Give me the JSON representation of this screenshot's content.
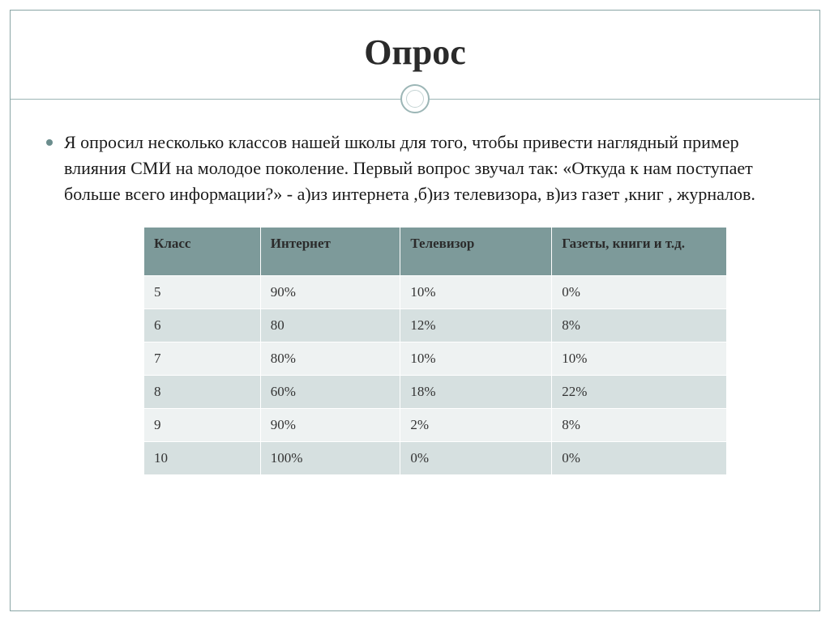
{
  "title": "Опрос",
  "paragraph": "Я опросил несколько классов нашей школы для того, чтобы привести наглядный пример влияния СМИ на молодое поколение. Первый вопрос звучал так: «Откуда к нам поступает больше всего информации?» - а)из интернета ,б)из телевизора, в)из газет ,книг , журналов.",
  "table": {
    "columns": [
      "Класс",
      "Интернет",
      "Телевизор",
      "Газеты, книги и т.д."
    ],
    "rows": [
      [
        "5",
        "90%",
        "10%",
        "0%"
      ],
      [
        "6",
        "80",
        "12%",
        "8%"
      ],
      [
        "7",
        "80%",
        "10%",
        "10%"
      ],
      [
        "8",
        "60%",
        "18%",
        "22%"
      ],
      [
        "9",
        "90%",
        "2%",
        "8%"
      ],
      [
        "10",
        "100%",
        "0%",
        "0%"
      ]
    ],
    "header_bg": "#7d9a9a",
    "header_text_color": "#2b2b2b",
    "row_odd_bg": "#eef2f2",
    "row_even_bg": "#d6e0e0",
    "cell_border_color": "#ffffff",
    "cell_text_color": "#333333",
    "cell_fontsize": 17,
    "header_fontsize": 17
  },
  "styling": {
    "slide_border_color": "#8aa6a6",
    "title_color": "#2a2a2a",
    "title_fontsize": 44,
    "divider_line_color": "#9cb6b6",
    "divider_circle_border": "#9cb6b6",
    "bullet_color": "#6b8d8d",
    "body_fontsize": 22,
    "body_text_color": "#1a1a1a",
    "background_color": "#ffffff"
  }
}
